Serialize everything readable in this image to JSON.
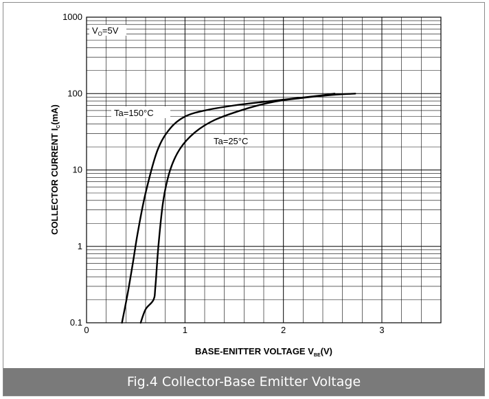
{
  "caption": "Fig.4  Collector-Base Emitter  Voltage",
  "chart_data": {
    "type": "line",
    "title": "",
    "xlabel": "BASE-ENITTER VOLTAGE  V",
    "xlabel_sub": "BE",
    "xlabel_tail": "(V)",
    "ylabel": "COLLECTOR CURRENT  I",
    "ylabel_sub": "C",
    "ylabel_tail": "(mA)",
    "xlim": [
      0,
      3.6
    ],
    "ylim": [
      0.1,
      1000
    ],
    "yscale": "log",
    "grid": true,
    "x_ticks": [
      0,
      1,
      2,
      3
    ],
    "x_tick_labels": [
      "0",
      "1",
      "2",
      "3"
    ],
    "y_ticks": [
      0.1,
      1,
      10,
      100,
      1000
    ],
    "y_tick_labels": [
      "0.1",
      "1",
      "10",
      "100",
      "1000"
    ],
    "condition_label": "V",
    "condition_sub": "O",
    "condition_tail": "=5V",
    "series": [
      {
        "name": "Ta=150°C",
        "x": [
          0.36,
          0.42,
          0.47,
          0.52,
          0.6,
          0.72,
          0.85,
          1.0,
          1.2,
          1.5,
          1.8,
          2.1,
          2.4,
          2.52
        ],
        "y": [
          0.1,
          0.25,
          0.6,
          1.5,
          5,
          18,
          35,
          50,
          60,
          70,
          78,
          86,
          95,
          100
        ]
      },
      {
        "name": "Ta=25°C",
        "x": [
          0.55,
          0.6,
          0.68,
          0.7,
          0.73,
          0.78,
          0.85,
          0.95,
          1.1,
          1.3,
          1.6,
          1.9,
          2.2,
          2.5,
          2.73
        ],
        "y": [
          0.1,
          0.15,
          0.2,
          0.3,
          1,
          4,
          10,
          19,
          31,
          45,
          62,
          78,
          88,
          96,
          100
        ]
      }
    ]
  }
}
